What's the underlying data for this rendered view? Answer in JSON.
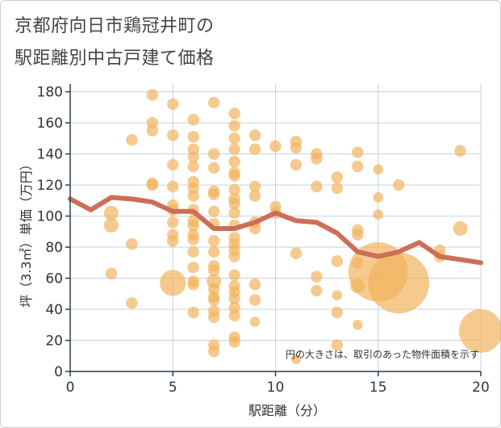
{
  "title_line1": "京都府向日市鶏冠井町の",
  "title_line2": "駅距離別中古戸建て価格",
  "chart_data": {
    "type": "scatter",
    "title": "京都府向日市鶏冠井町の駅距離別中古戸建て価格",
    "xlabel": "駅距離（分）",
    "ylabel": "坪（3.3㎡）単価（万円）",
    "xlim": [
      0,
      20
    ],
    "ylim": [
      0,
      185
    ],
    "xticks": [
      "0",
      "5",
      "10",
      "15",
      "20"
    ],
    "yticks": [
      "0",
      "20",
      "40",
      "60",
      "80",
      "100",
      "120",
      "140",
      "160",
      "180"
    ],
    "xtick_values": [
      0,
      5,
      10,
      15,
      20
    ],
    "ytick_values": [
      0,
      20,
      40,
      60,
      80,
      100,
      120,
      140,
      160,
      180
    ],
    "note": "円の大きさは、取引のあった物件面積を示す",
    "colors": {
      "bubble": "#f2b35e",
      "line": "#cd6e57",
      "grid": "#c5d3de",
      "axis": "#2c3e50"
    },
    "bubbles": [
      {
        "x": 2,
        "y": 102,
        "s": 1
      },
      {
        "x": 2,
        "y": 94,
        "s": 1
      },
      {
        "x": 2,
        "y": 63,
        "s": 0.8
      },
      {
        "x": 3,
        "y": 149,
        "s": 0.8
      },
      {
        "x": 3,
        "y": 82,
        "s": 0.8
      },
      {
        "x": 3,
        "y": 44,
        "s": 0.8
      },
      {
        "x": 4,
        "y": 178,
        "s": 0.8
      },
      {
        "x": 4,
        "y": 160,
        "s": 0.8
      },
      {
        "x": 4,
        "y": 155,
        "s": 0.8
      },
      {
        "x": 4,
        "y": 121,
        "s": 0.8
      },
      {
        "x": 4,
        "y": 120,
        "s": 0.8
      },
      {
        "x": 5,
        "y": 172,
        "s": 0.8
      },
      {
        "x": 5,
        "y": 152,
        "s": 0.8
      },
      {
        "x": 5,
        "y": 133,
        "s": 0.8
      },
      {
        "x": 5,
        "y": 119,
        "s": 0.8
      },
      {
        "x": 5,
        "y": 107,
        "s": 0.8
      },
      {
        "x": 5,
        "y": 104,
        "s": 0.8
      },
      {
        "x": 5,
        "y": 96,
        "s": 0.8
      },
      {
        "x": 5,
        "y": 88,
        "s": 0.8
      },
      {
        "x": 5,
        "y": 84,
        "s": 0.8
      },
      {
        "x": 5,
        "y": 57,
        "s": 1.8
      },
      {
        "x": 6,
        "y": 162,
        "s": 0.8
      },
      {
        "x": 6,
        "y": 151,
        "s": 0.8
      },
      {
        "x": 6,
        "y": 143,
        "s": 0.8
      },
      {
        "x": 6,
        "y": 138,
        "s": 0.8
      },
      {
        "x": 6,
        "y": 132,
        "s": 0.8
      },
      {
        "x": 6,
        "y": 122,
        "s": 0.8
      },
      {
        "x": 6,
        "y": 118,
        "s": 0.8
      },
      {
        "x": 6,
        "y": 113,
        "s": 0.8
      },
      {
        "x": 6,
        "y": 104,
        "s": 0.8
      },
      {
        "x": 6,
        "y": 97,
        "s": 0.8
      },
      {
        "x": 6,
        "y": 94,
        "s": 0.8
      },
      {
        "x": 6,
        "y": 88,
        "s": 0.8
      },
      {
        "x": 6,
        "y": 85,
        "s": 0.8
      },
      {
        "x": 6,
        "y": 77,
        "s": 0.8
      },
      {
        "x": 6,
        "y": 67,
        "s": 0.8
      },
      {
        "x": 6,
        "y": 58,
        "s": 0.8
      },
      {
        "x": 6,
        "y": 56,
        "s": 0.8
      },
      {
        "x": 6,
        "y": 38,
        "s": 0.8
      },
      {
        "x": 7,
        "y": 173,
        "s": 0.8
      },
      {
        "x": 7,
        "y": 140,
        "s": 0.8
      },
      {
        "x": 7,
        "y": 131,
        "s": 0.8
      },
      {
        "x": 7,
        "y": 116,
        "s": 0.8
      },
      {
        "x": 7,
        "y": 114,
        "s": 0.8
      },
      {
        "x": 7,
        "y": 103,
        "s": 0.8
      },
      {
        "x": 7,
        "y": 95,
        "s": 0.8
      },
      {
        "x": 7,
        "y": 84,
        "s": 0.8
      },
      {
        "x": 7,
        "y": 77,
        "s": 0.8
      },
      {
        "x": 7,
        "y": 68,
        "s": 0.8
      },
      {
        "x": 7,
        "y": 65,
        "s": 0.8
      },
      {
        "x": 7,
        "y": 58,
        "s": 1
      },
      {
        "x": 7,
        "y": 53,
        "s": 0.8
      },
      {
        "x": 7,
        "y": 48,
        "s": 0.8
      },
      {
        "x": 7,
        "y": 46,
        "s": 0.8
      },
      {
        "x": 7,
        "y": 39,
        "s": 0.8
      },
      {
        "x": 7,
        "y": 35,
        "s": 0.8
      },
      {
        "x": 7,
        "y": 17,
        "s": 0.8
      },
      {
        "x": 7,
        "y": 13,
        "s": 0.8
      },
      {
        "x": 8,
        "y": 166,
        "s": 0.8
      },
      {
        "x": 8,
        "y": 158,
        "s": 0.8
      },
      {
        "x": 8,
        "y": 150,
        "s": 0.8
      },
      {
        "x": 8,
        "y": 143,
        "s": 0.8
      },
      {
        "x": 8,
        "y": 135,
        "s": 0.8
      },
      {
        "x": 8,
        "y": 128,
        "s": 0.8
      },
      {
        "x": 8,
        "y": 126,
        "s": 0.8
      },
      {
        "x": 8,
        "y": 117,
        "s": 0.8
      },
      {
        "x": 8,
        "y": 111,
        "s": 0.8
      },
      {
        "x": 8,
        "y": 108,
        "s": 0.8
      },
      {
        "x": 8,
        "y": 102,
        "s": 0.8
      },
      {
        "x": 8,
        "y": 94,
        "s": 0.8
      },
      {
        "x": 8,
        "y": 86,
        "s": 0.8
      },
      {
        "x": 8,
        "y": 82,
        "s": 0.8
      },
      {
        "x": 8,
        "y": 78,
        "s": 0.8
      },
      {
        "x": 8,
        "y": 74,
        "s": 0.8
      },
      {
        "x": 8,
        "y": 62,
        "s": 0.8
      },
      {
        "x": 8,
        "y": 55,
        "s": 0.8
      },
      {
        "x": 8,
        "y": 51,
        "s": 0.8
      },
      {
        "x": 8,
        "y": 47,
        "s": 0.8
      },
      {
        "x": 8,
        "y": 41,
        "s": 0.8
      },
      {
        "x": 8,
        "y": 36,
        "s": 0.8
      },
      {
        "x": 8,
        "y": 22,
        "s": 0.8
      },
      {
        "x": 8,
        "y": 19,
        "s": 0.8
      },
      {
        "x": 9,
        "y": 152,
        "s": 0.8
      },
      {
        "x": 9,
        "y": 143,
        "s": 0.8
      },
      {
        "x": 9,
        "y": 119,
        "s": 0.8
      },
      {
        "x": 9,
        "y": 113,
        "s": 0.8
      },
      {
        "x": 9,
        "y": 96,
        "s": 0.8
      },
      {
        "x": 9,
        "y": 92,
        "s": 0.8
      },
      {
        "x": 9,
        "y": 56,
        "s": 0.8
      },
      {
        "x": 9,
        "y": 46,
        "s": 0.8
      },
      {
        "x": 9,
        "y": 32,
        "s": 0.7
      },
      {
        "x": 10,
        "y": 145,
        "s": 0.8
      },
      {
        "x": 10,
        "y": 106,
        "s": 0.8
      },
      {
        "x": 10,
        "y": 102,
        "s": 0.8
      },
      {
        "x": 11,
        "y": 148,
        "s": 0.8
      },
      {
        "x": 11,
        "y": 144,
        "s": 0.8
      },
      {
        "x": 11,
        "y": 133,
        "s": 0.8
      },
      {
        "x": 11,
        "y": 76,
        "s": 0.8
      },
      {
        "x": 11,
        "y": 8,
        "s": 0.7
      },
      {
        "x": 12,
        "y": 140,
        "s": 0.8
      },
      {
        "x": 12,
        "y": 137,
        "s": 0.8
      },
      {
        "x": 12,
        "y": 119,
        "s": 0.8
      },
      {
        "x": 12,
        "y": 61,
        "s": 0.8
      },
      {
        "x": 12,
        "y": 52,
        "s": 0.8
      },
      {
        "x": 13,
        "y": 125,
        "s": 0.8
      },
      {
        "x": 13,
        "y": 118,
        "s": 0.8
      },
      {
        "x": 13,
        "y": 71,
        "s": 0.8
      },
      {
        "x": 13,
        "y": 49,
        "s": 0.7
      },
      {
        "x": 13,
        "y": 38,
        "s": 0.8
      },
      {
        "x": 13,
        "y": 17,
        "s": 0.8
      },
      {
        "x": 14,
        "y": 141,
        "s": 0.8
      },
      {
        "x": 14,
        "y": 132,
        "s": 0.8
      },
      {
        "x": 14,
        "y": 91,
        "s": 0.8
      },
      {
        "x": 14,
        "y": 88,
        "s": 0.8
      },
      {
        "x": 14,
        "y": 70,
        "s": 0.8
      },
      {
        "x": 14,
        "y": 55,
        "s": 1
      },
      {
        "x": 14,
        "y": 30,
        "s": 0.7
      },
      {
        "x": 15,
        "y": 130,
        "s": 0.7
      },
      {
        "x": 15,
        "y": 112,
        "s": 0.7
      },
      {
        "x": 15,
        "y": 101,
        "s": 0.7
      },
      {
        "x": 15,
        "y": 64,
        "s": 4.1
      },
      {
        "x": 16,
        "y": 120,
        "s": 0.8
      },
      {
        "x": 16,
        "y": 57,
        "s": 4.2
      },
      {
        "x": 18,
        "y": 78,
        "s": 0.8
      },
      {
        "x": 18,
        "y": 74,
        "s": 0.8
      },
      {
        "x": 19,
        "y": 142,
        "s": 0.8
      },
      {
        "x": 19,
        "y": 92,
        "s": 1
      },
      {
        "x": 20,
        "y": 26,
        "s": 3
      }
    ],
    "trend_line": {
      "x": [
        0,
        1,
        2,
        3,
        4,
        5,
        6,
        7,
        8,
        9,
        10,
        11,
        12,
        13,
        14,
        15,
        16,
        17,
        18,
        19,
        20
      ],
      "y": [
        111,
        104,
        112,
        111,
        109,
        103,
        103,
        92,
        92,
        96,
        102,
        97,
        96,
        89,
        77,
        74,
        77,
        83,
        74,
        72,
        70
      ]
    }
  }
}
